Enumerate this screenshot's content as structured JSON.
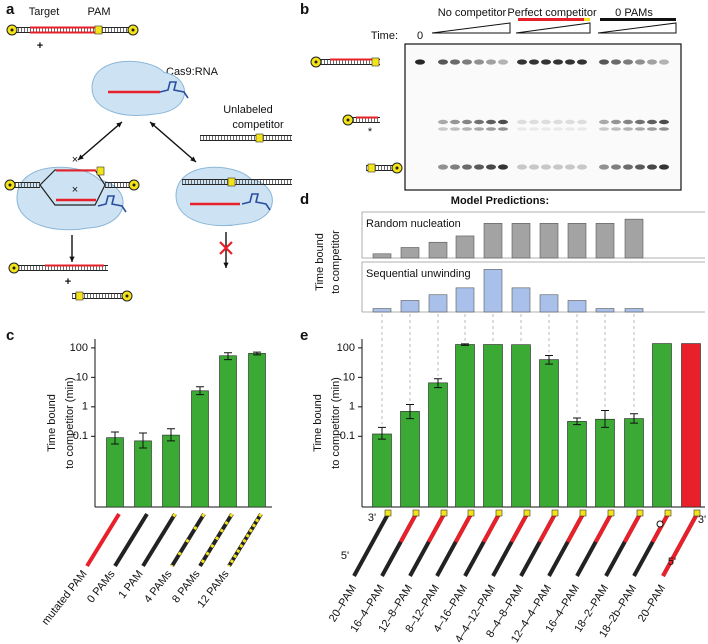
{
  "panel_labels": [
    "a",
    "b",
    "c",
    "d",
    "e"
  ],
  "diagram": {
    "target": "Target",
    "pam": "PAM",
    "plus_signs": [
      "+",
      "+"
    ],
    "complex": "Cas9:RNA",
    "competitor": [
      "Unlabeled",
      "competitor"
    ]
  },
  "gel": {
    "time_label": "Time:",
    "time_zero": "0",
    "lanes": [
      "No competitor",
      "Perfect competitor",
      "0 PAMs"
    ],
    "marker": "*"
  },
  "panel_d": {
    "title": "Model Predictions:",
    "y_label": [
      "Time bound",
      "to competitor"
    ]
  },
  "chart_data": [
    {
      "type": "bar",
      "y_label": [
        "Time bound",
        "to competitor (min)"
      ],
      "categories": [
        "mutated PAM",
        "0 PAMs",
        "1 PAM",
        "4 PAMs",
        "8 PAMs",
        "12 PAMs"
      ],
      "values": [
        0.09,
        0.07,
        0.11,
        3.5,
        54,
        65
      ],
      "error_low": [
        0.055,
        0.04,
        0.07,
        2.6,
        40,
        58
      ],
      "error_high": [
        0.14,
        0.13,
        0.18,
        4.8,
        68,
        72
      ],
      "color": "#3aaa35",
      "log_scale": true,
      "ylim": [
        0.0004,
        200
      ],
      "yticks": [
        0.1,
        1,
        10,
        100
      ]
    },
    {
      "type": "bar",
      "title": "Random nucleation",
      "values": [
        4,
        10,
        15,
        21,
        33,
        33,
        33,
        33,
        33,
        37
      ],
      "color": "#a3a3a3",
      "ylim": [
        0,
        40
      ]
    },
    {
      "type": "bar",
      "title": "Sequential unwinding",
      "values": [
        3,
        10,
        15,
        21,
        37,
        21,
        15,
        10,
        3,
        3
      ],
      "color": "#a9c1ea",
      "ylim": [
        0,
        40
      ]
    },
    {
      "type": "bar",
      "y_label": [
        "Time bound",
        "to competitor (min)"
      ],
      "categories": [
        "20–PAM",
        "16–4–PAM",
        "12–8–PAM",
        "8–12–PAM",
        "4–16–PAM",
        "4–4–12–PAM",
        "8–4–8–PAM",
        "12–4–4–PAM",
        "16–4–PAM",
        "18–2–PAM",
        "18–2b–PAM",
        "20–PAM"
      ],
      "values": [
        0.12,
        0.7,
        6.5,
        130,
        130,
        128,
        40,
        0.32,
        0.38,
        0.4,
        140,
        140
      ],
      "error_low": [
        0.08,
        0.4,
        4.5,
        122,
        null,
        null,
        28,
        0.25,
        0.2,
        0.28,
        null,
        null
      ],
      "error_high": [
        0.2,
        1.2,
        9,
        136,
        null,
        null,
        55,
        0.42,
        0.75,
        0.58,
        null,
        null
      ],
      "colors": [
        "#3aaa35",
        "#3aaa35",
        "#3aaa35",
        "#3aaa35",
        "#3aaa35",
        "#3aaa35",
        "#3aaa35",
        "#3aaa35",
        "#3aaa35",
        "#3aaa35",
        "#3aaa35",
        "#e8202a"
      ],
      "log_scale": true,
      "ylim": [
        0.0004,
        200
      ],
      "yticks": [
        0.1,
        1,
        10,
        100
      ],
      "end_labels": [
        "3'",
        "5'",
        "5'",
        "3'"
      ]
    }
  ]
}
